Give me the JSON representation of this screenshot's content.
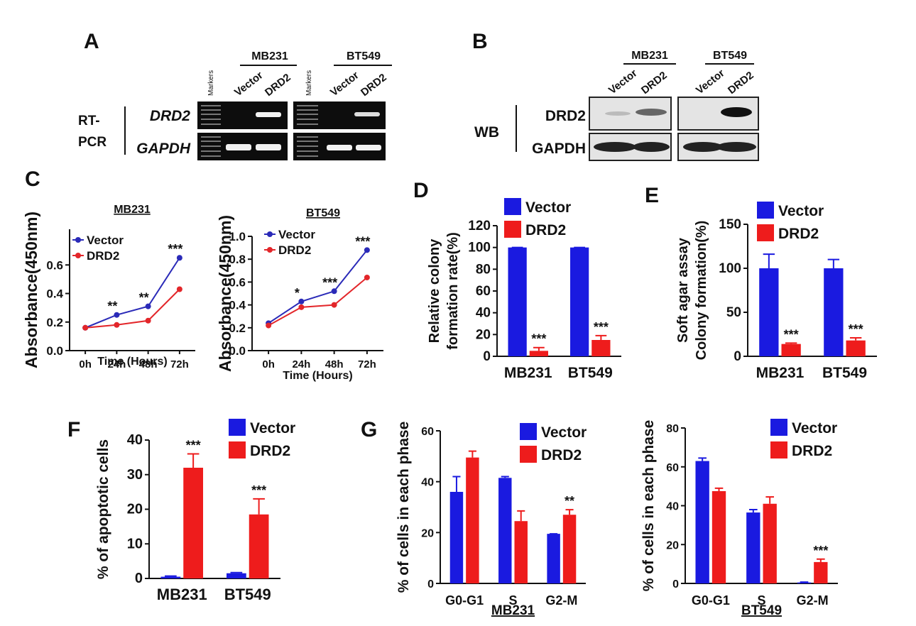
{
  "panel_letters": [
    "A",
    "B",
    "C",
    "D",
    "E",
    "F",
    "G"
  ],
  "gel_a": {
    "markers": [
      "Markers",
      "Markers"
    ],
    "groups": [
      "MB231",
      "BT549"
    ],
    "lanes": [
      "Vector",
      "DRD2",
      "Vector",
      "DRD2"
    ],
    "method": [
      "RT-",
      "PCR"
    ],
    "genes": [
      "DRD2",
      "GAPDH"
    ]
  },
  "gel_b": {
    "groups": [
      "MB231",
      "BT549"
    ],
    "lanes": [
      "Vector",
      "DRD2",
      "Vector",
      "DRD2"
    ],
    "method": "WB",
    "proteins": [
      "DRD2",
      "GAPDH"
    ]
  },
  "chart_data": [
    {
      "type": "line",
      "title": "MB231",
      "xlabel": "Time (Hours)",
      "ylabel": "Absorbance(450nm)",
      "categories": [
        "0h",
        "24h",
        "48h",
        "72h"
      ],
      "series": [
        {
          "name": "Vector",
          "color": "#2a2ab8",
          "values": [
            0.16,
            0.25,
            0.31,
            0.65
          ]
        },
        {
          "name": "DRD2",
          "color": "#e3262a",
          "values": [
            0.16,
            0.18,
            0.21,
            0.43
          ]
        }
      ],
      "annotations": [
        null,
        "**",
        "**",
        "***"
      ],
      "ylim": [
        0,
        0.85
      ],
      "yticks": [
        {
          "value": 0,
          "label": "0.0"
        },
        0.2,
        0.4,
        0.6
      ]
    },
    {
      "type": "line",
      "title": "BT549",
      "xlabel": "Time (Hours)",
      "ylabel": "Absorbance(450nm)",
      "categories": [
        "0h",
        "24h",
        "48h",
        "72h"
      ],
      "series": [
        {
          "name": "Vector",
          "color": "#2a2ab8",
          "values": [
            0.24,
            0.43,
            0.52,
            0.88
          ]
        },
        {
          "name": "DRD2",
          "color": "#e3262a",
          "values": [
            0.22,
            0.38,
            0.4,
            0.64
          ]
        }
      ],
      "annotations": [
        null,
        "*",
        "***",
        "***"
      ],
      "ylim": [
        0,
        1.0
      ],
      "yticks": [
        {
          "value": 0,
          "label": "0.0"
        },
        0.2,
        0.4,
        0.6,
        0.8,
        {
          "value": 1,
          "label": "1.0"
        }
      ]
    },
    {
      "type": "bar",
      "ylabel": [
        "Relative colony",
        "formation rate(%)"
      ],
      "categories": [
        "MB231",
        "BT549"
      ],
      "series": [
        {
          "name": "Vector",
          "color": "#1a1ae0",
          "values": [
            100,
            100
          ],
          "errors": [
            0,
            0
          ]
        },
        {
          "name": "DRD2",
          "color": "#ee1c1c",
          "values": [
            5,
            15
          ],
          "errors": [
            3,
            4
          ],
          "annotations": [
            "***",
            "***"
          ]
        }
      ],
      "ylim": [
        0,
        120
      ],
      "yticks": [
        0,
        20,
        40,
        60,
        80,
        100,
        120
      ]
    },
    {
      "type": "bar",
      "ylabel": [
        "Soft agar assay",
        "Colony  formation(%)"
      ],
      "categories": [
        "MB231",
        "BT549"
      ],
      "series": [
        {
          "name": "Vector",
          "color": "#1a1ae0",
          "values": [
            100,
            100
          ],
          "errors": [
            16,
            10
          ]
        },
        {
          "name": "DRD2",
          "color": "#ee1c1c",
          "values": [
            14,
            18
          ],
          "errors": [
            1,
            3
          ],
          "annotations": [
            "***",
            "***"
          ]
        }
      ],
      "ylim": [
        0,
        150
      ],
      "yticks": [
        0,
        50,
        100,
        150
      ]
    },
    {
      "type": "bar",
      "ylabel": "% of apoptotic cells",
      "categories": [
        "MB231",
        "BT549"
      ],
      "series": [
        {
          "name": "Vector",
          "color": "#1a1ae0",
          "values": [
            0.5,
            1.5
          ],
          "errors": [
            0.2,
            0.2
          ]
        },
        {
          "name": "DRD2",
          "color": "#ee1c1c",
          "values": [
            32,
            18.5
          ],
          "errors": [
            4,
            4.5
          ],
          "annotations": [
            "***",
            "***"
          ]
        }
      ],
      "ylim": [
        0,
        40
      ],
      "yticks": [
        0,
        10,
        20,
        30,
        40
      ]
    },
    {
      "type": "bar",
      "xlabel": "MB231",
      "ylabel": "% of cells in each phase",
      "categories": [
        "G0-G1",
        "S",
        "G2-M"
      ],
      "series": [
        {
          "name": "Vector",
          "color": "#1a1ae0",
          "values": [
            36,
            41.5,
            19.5
          ],
          "errors": [
            6,
            0.5,
            0
          ]
        },
        {
          "name": "DRD2",
          "color": "#ee1c1c",
          "values": [
            49.5,
            24.5,
            27
          ],
          "errors": [
            2.5,
            4,
            2
          ],
          "annotations": [
            null,
            null,
            "**"
          ]
        }
      ],
      "ylim": [
        0,
        60
      ],
      "yticks": [
        0,
        20,
        40,
        60
      ]
    },
    {
      "type": "bar",
      "xlabel": "BT549",
      "ylabel": "% of cells in each phase",
      "categories": [
        "G0-G1",
        "S",
        "G2-M"
      ],
      "series": [
        {
          "name": "Vector",
          "color": "#1a1ae0",
          "values": [
            63,
            36.5,
            0.5
          ],
          "errors": [
            1.5,
            1.5,
            0.2
          ]
        },
        {
          "name": "DRD2",
          "color": "#ee1c1c",
          "values": [
            47.5,
            41,
            11
          ],
          "errors": [
            1.5,
            3.5,
            1.5
          ],
          "annotations": [
            null,
            null,
            "***"
          ]
        }
      ],
      "ylim": [
        0,
        80
      ],
      "yticks": [
        0,
        20,
        40,
        60,
        80
      ]
    }
  ]
}
